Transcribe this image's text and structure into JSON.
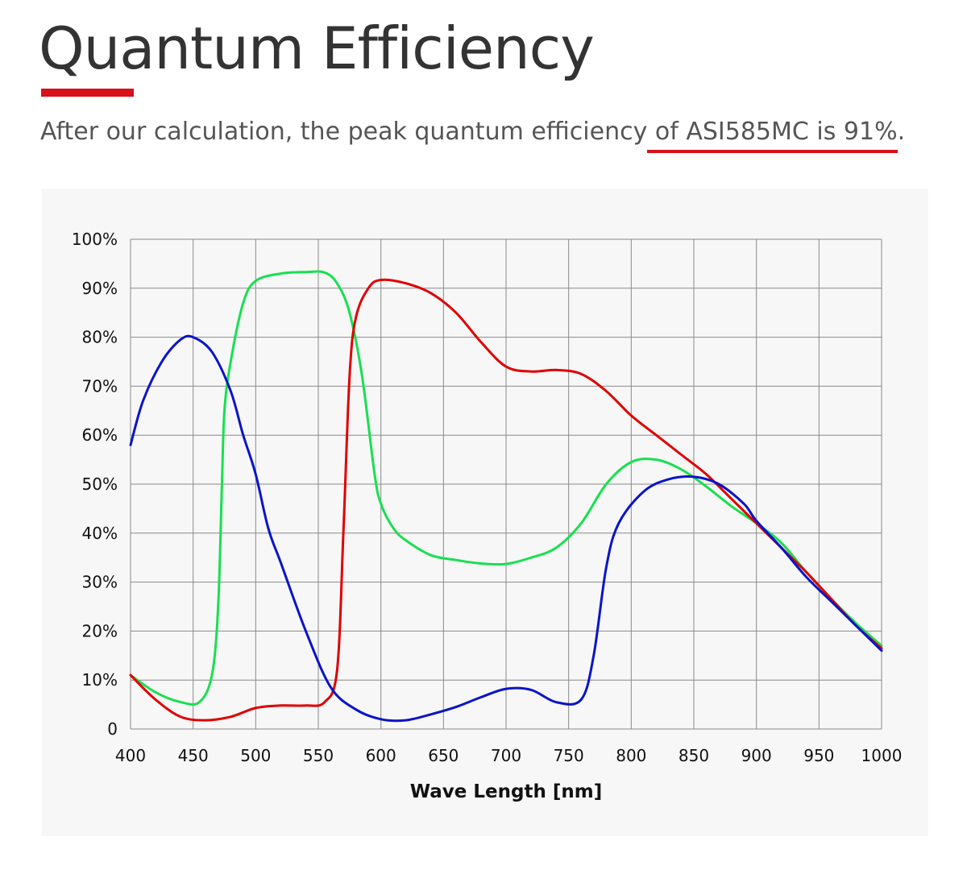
{
  "header": {
    "title": "Quantum Efficiency",
    "subtitle_pre": "After our calculation, the peak quantum efficiency",
    "subtitle_highlight": " of ASI585MC is 91%",
    "subtitle_post": "."
  },
  "colors": {
    "accent": "#d81018",
    "red": "#e00000",
    "green": "#18e050",
    "blue": "#0a14c8"
  },
  "chart_data": {
    "type": "line",
    "title": "",
    "xlabel": "Wave Length [nm]",
    "ylabel": "",
    "xlim": [
      400,
      1000
    ],
    "ylim": [
      0,
      100
    ],
    "grid": true,
    "legend": "none",
    "x_ticks": [
      400,
      450,
      500,
      550,
      600,
      650,
      700,
      750,
      800,
      850,
      900,
      950,
      1000
    ],
    "x_tick_labels": [
      "400",
      "450",
      "500",
      "550",
      "600",
      "650",
      "700",
      "750",
      "800",
      "850",
      "900",
      "950",
      "1000"
    ],
    "y_ticks": [
      0,
      10,
      20,
      30,
      40,
      50,
      60,
      70,
      80,
      90,
      100
    ],
    "y_tick_labels": [
      "0",
      "10%",
      "20%",
      "30%",
      "40%",
      "50%",
      "60%",
      "70%",
      "80%",
      "90%",
      "100%"
    ],
    "series": [
      {
        "color": "#e00000",
        "points": [
          [
            400,
            11
          ],
          [
            420,
            6
          ],
          [
            440,
            2.5
          ],
          [
            460,
            1.8
          ],
          [
            480,
            2.5
          ],
          [
            500,
            4.3
          ],
          [
            520,
            4.8
          ],
          [
            540,
            4.8
          ],
          [
            555,
            5.5
          ],
          [
            565,
            12
          ],
          [
            570,
            40
          ],
          [
            575,
            72
          ],
          [
            580,
            84
          ],
          [
            590,
            90
          ],
          [
            600,
            91.7
          ],
          [
            620,
            91
          ],
          [
            640,
            89
          ],
          [
            660,
            85
          ],
          [
            680,
            79
          ],
          [
            700,
            74
          ],
          [
            720,
            73
          ],
          [
            740,
            73.3
          ],
          [
            760,
            72.5
          ],
          [
            780,
            69
          ],
          [
            800,
            64
          ],
          [
            820,
            60
          ],
          [
            840,
            56
          ],
          [
            860,
            52
          ],
          [
            880,
            47
          ],
          [
            900,
            42
          ],
          [
            920,
            37
          ],
          [
            940,
            32
          ],
          [
            960,
            26.5
          ],
          [
            980,
            21
          ],
          [
            1000,
            16.5
          ]
        ]
      },
      {
        "color": "#18e050",
        "points": [
          [
            400,
            11
          ],
          [
            420,
            7.5
          ],
          [
            440,
            5.5
          ],
          [
            455,
            5.5
          ],
          [
            465,
            11
          ],
          [
            470,
            25
          ],
          [
            473,
            50
          ],
          [
            475,
            65
          ],
          [
            480,
            75
          ],
          [
            490,
            87
          ],
          [
            500,
            91.5
          ],
          [
            520,
            93
          ],
          [
            540,
            93.3
          ],
          [
            555,
            93.2
          ],
          [
            565,
            91
          ],
          [
            575,
            85
          ],
          [
            585,
            72
          ],
          [
            595,
            52
          ],
          [
            600,
            46
          ],
          [
            610,
            41
          ],
          [
            620,
            38.5
          ],
          [
            640,
            35.5
          ],
          [
            660,
            34.5
          ],
          [
            680,
            33.8
          ],
          [
            700,
            33.7
          ],
          [
            720,
            35
          ],
          [
            740,
            37
          ],
          [
            760,
            42
          ],
          [
            780,
            50
          ],
          [
            800,
            54.5
          ],
          [
            820,
            55
          ],
          [
            840,
            53
          ],
          [
            860,
            49.5
          ],
          [
            880,
            45.5
          ],
          [
            900,
            42
          ],
          [
            920,
            38
          ],
          [
            940,
            32
          ],
          [
            960,
            26.5
          ],
          [
            980,
            21.5
          ],
          [
            1000,
            17
          ]
        ]
      },
      {
        "color": "#0a14c8",
        "points": [
          [
            400,
            58
          ],
          [
            410,
            67
          ],
          [
            425,
            75
          ],
          [
            440,
            79.5
          ],
          [
            450,
            80
          ],
          [
            465,
            77
          ],
          [
            480,
            69
          ],
          [
            490,
            60
          ],
          [
            500,
            52
          ],
          [
            510,
            41
          ],
          [
            520,
            34
          ],
          [
            540,
            20
          ],
          [
            560,
            8.5
          ],
          [
            580,
            4
          ],
          [
            600,
            2
          ],
          [
            620,
            1.8
          ],
          [
            640,
            3
          ],
          [
            660,
            4.5
          ],
          [
            680,
            6.5
          ],
          [
            700,
            8.2
          ],
          [
            720,
            8
          ],
          [
            740,
            5.5
          ],
          [
            760,
            6
          ],
          [
            770,
            15
          ],
          [
            780,
            33
          ],
          [
            790,
            42
          ],
          [
            810,
            48.5
          ],
          [
            830,
            51
          ],
          [
            850,
            51.5
          ],
          [
            870,
            50
          ],
          [
            890,
            46
          ],
          [
            900,
            42.5
          ],
          [
            920,
            37
          ],
          [
            940,
            31
          ],
          [
            960,
            26
          ],
          [
            980,
            21
          ],
          [
            1000,
            16
          ]
        ]
      }
    ]
  }
}
